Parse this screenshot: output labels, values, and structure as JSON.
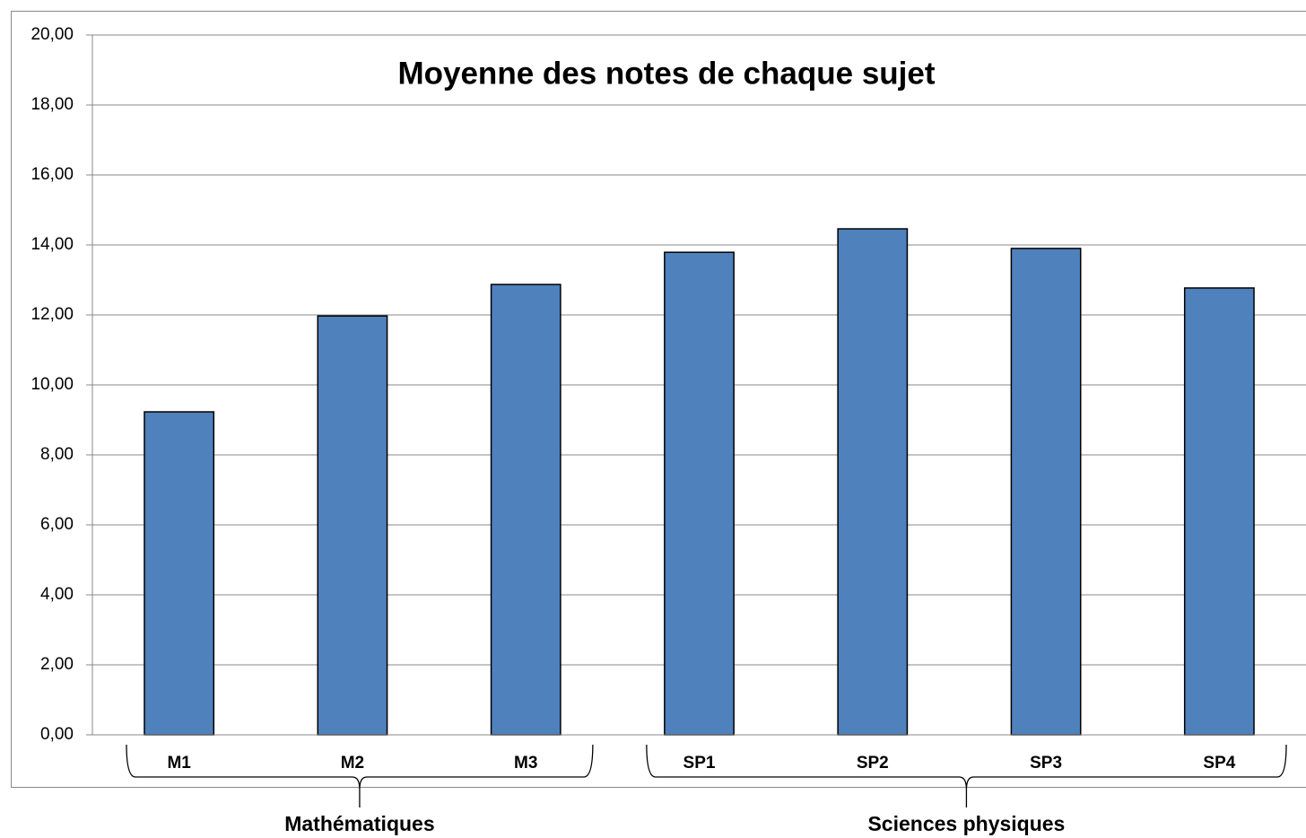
{
  "chart_data": {
    "type": "bar",
    "title": "Moyenne des notes de chaque sujet",
    "categories": [
      "M1",
      "M2",
      "M3",
      "SP1",
      "SP2",
      "SP3",
      "SP4"
    ],
    "values": [
      9.23,
      11.97,
      12.87,
      13.79,
      14.46,
      13.9,
      12.77
    ],
    "color": "#4f81bd",
    "groups": [
      {
        "label": "Mathématiques",
        "members": [
          "M1",
          "M2",
          "M3"
        ]
      },
      {
        "label": "Sciences physiques",
        "members": [
          "SP1",
          "SP2",
          "SP3",
          "SP4"
        ]
      }
    ],
    "ylim": [
      0,
      20
    ],
    "yticks": [
      {
        "value": 0,
        "label": "0,00"
      },
      {
        "value": 2,
        "label": "2,00"
      },
      {
        "value": 4,
        "label": "4,00"
      },
      {
        "value": 6,
        "label": "6,00"
      },
      {
        "value": 8,
        "label": "8,00"
      },
      {
        "value": 10,
        "label": "10,00"
      },
      {
        "value": 12,
        "label": "12,00"
      },
      {
        "value": 14,
        "label": "14,00"
      },
      {
        "value": 16,
        "label": "16,00"
      },
      {
        "value": 18,
        "label": "18,00"
      },
      {
        "value": 20,
        "label": "20,00"
      }
    ],
    "grid": true
  }
}
